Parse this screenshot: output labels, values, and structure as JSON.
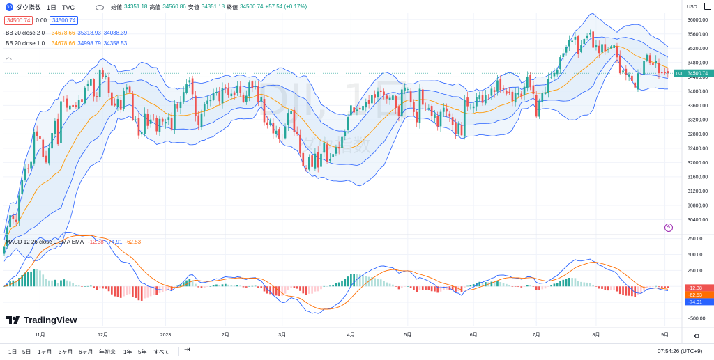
{
  "header": {
    "symbol_badge": "30",
    "title": "ダウ指数 · 1日 · TVC",
    "open_label": "始値",
    "open": "34351.18",
    "high_label": "高値",
    "high": "34560.86",
    "low_label": "安値",
    "low": "34351.18",
    "close_label": "終値",
    "close": "34500.74",
    "change": "+57.54 (+0.17%)",
    "sell_price": "34500.74",
    "spread": "0.00",
    "buy_price": "34500.74",
    "currency": "USD"
  },
  "legends": {
    "bb2_name": "BB 20 close 2 0",
    "bb2_basis": "34678.66",
    "bb2_upper": "35318.93",
    "bb2_lower": "34038.39",
    "bb1_name": "BB 20 close 1 0",
    "bb1_basis": "34678.66",
    "bb1_upper": "34998.79",
    "bb1_lower": "34358.53",
    "macd_name": "MACD 12 26 close 9 EMA EMA",
    "macd_hist": "-12.38",
    "macd_line": "-74.91",
    "macd_signal": "-62.53"
  },
  "watermark": {
    "symbol": "DJI, 1日",
    "name": "ダウ指数"
  },
  "price_axis": {
    "ticks": [
      "36000.00",
      "35600.00",
      "35200.00",
      "34800.00",
      "34400.00",
      "34000.00",
      "33600.00",
      "33200.00",
      "32800.00",
      "32400.00",
      "32000.00",
      "31600.00",
      "31200.00",
      "30800.00",
      "30400.00"
    ],
    "last_tag_name": "DJI",
    "last_tag_value": "34500.74"
  },
  "macd_axis": {
    "ticks": [
      "750.00",
      "500.00",
      "250.00",
      "0.00",
      "−250.00",
      "−500.00"
    ]
  },
  "time_axis": {
    "labels": [
      "11月",
      "12月",
      "2023",
      "2月",
      "3月",
      "4月",
      "5月",
      "6月",
      "7月",
      "8月",
      "9月"
    ]
  },
  "bottom": {
    "timeframes": [
      "1日",
      "5日",
      "1ヶ月",
      "3ヶ月",
      "6ヶ月",
      "年初来",
      "1年",
      "5年",
      "すべて"
    ],
    "clock": "07:54:26 (UTC+9)"
  },
  "logo_text": "TradingView",
  "colors": {
    "up": "#26a69a",
    "down": "#ef5350",
    "bb_line": "#2962ff",
    "bb_fill": "#e3effa",
    "basis": "#ff9800",
    "macd_line": "#2962ff",
    "signal_line": "#ff6d00",
    "hist_pos": "#26a69a",
    "hist_pos_light": "#b2dfdb",
    "hist_neg": "#ef5350",
    "hist_neg_light": "#ffcdd2"
  },
  "chart_data": {
    "type": "candlestick",
    "dates": [
      "2022-10-14",
      "2022-10-17",
      "2022-10-18",
      "2022-10-19",
      "2022-10-20",
      "2022-10-21",
      "2022-10-24",
      "2022-10-25",
      "2022-10-26",
      "2022-10-27",
      "2022-10-28",
      "2022-10-31",
      "2022-11-01",
      "2022-11-02",
      "2022-11-03",
      "2022-11-04",
      "2022-11-07",
      "2022-11-08",
      "2022-11-09",
      "2022-11-10",
      "2022-11-11",
      "2022-11-14",
      "2022-11-15",
      "2022-11-16",
      "2022-11-17",
      "2022-11-18",
      "2022-11-21",
      "2022-11-22",
      "2022-11-23",
      "2022-11-25",
      "2022-11-28",
      "2022-11-29",
      "2022-11-30",
      "2022-12-01",
      "2022-12-02",
      "2022-12-05",
      "2022-12-06",
      "2022-12-07",
      "2022-12-08",
      "2022-12-09",
      "2022-12-12",
      "2022-12-13",
      "2022-12-14",
      "2022-12-15",
      "2022-12-16",
      "2022-12-19",
      "2022-12-20",
      "2022-12-21",
      "2022-12-22",
      "2022-12-23",
      "2022-12-27",
      "2022-12-28",
      "2022-12-29",
      "2022-12-30",
      "2023-01-03",
      "2023-01-04",
      "2023-01-05",
      "2023-01-06",
      "2023-01-09",
      "2023-01-10",
      "2023-01-11",
      "2023-01-12",
      "2023-01-13",
      "2023-01-17",
      "2023-01-18",
      "2023-01-19",
      "2023-01-20",
      "2023-01-23",
      "2023-01-24",
      "2023-01-25",
      "2023-01-26",
      "2023-01-27",
      "2023-01-30",
      "2023-01-31",
      "2023-02-01",
      "2023-02-02",
      "2023-02-03",
      "2023-02-06",
      "2023-02-07",
      "2023-02-08",
      "2023-02-09",
      "2023-02-10",
      "2023-02-13",
      "2023-02-14",
      "2023-02-15",
      "2023-02-16",
      "2023-02-17",
      "2023-02-21",
      "2023-02-22",
      "2023-02-23",
      "2023-02-24",
      "2023-02-27",
      "2023-02-28",
      "2023-03-01",
      "2023-03-02",
      "2023-03-03",
      "2023-03-06",
      "2023-03-07",
      "2023-03-08",
      "2023-03-09",
      "2023-03-10",
      "2023-03-13",
      "2023-03-14",
      "2023-03-15",
      "2023-03-16",
      "2023-03-17",
      "2023-03-20",
      "2023-03-21",
      "2023-03-22",
      "2023-03-23",
      "2023-03-24",
      "2023-03-27",
      "2023-03-28",
      "2023-03-29",
      "2023-03-30",
      "2023-03-31",
      "2023-04-03",
      "2023-04-04",
      "2023-04-05",
      "2023-04-06",
      "2023-04-10",
      "2023-04-11",
      "2023-04-12",
      "2023-04-13",
      "2023-04-14",
      "2023-04-17",
      "2023-04-18",
      "2023-04-19",
      "2023-04-20",
      "2023-04-21",
      "2023-04-24",
      "2023-04-25",
      "2023-04-26",
      "2023-04-27",
      "2023-04-28",
      "2023-05-01",
      "2023-05-02",
      "2023-05-03",
      "2023-05-04",
      "2023-05-05",
      "2023-05-08",
      "2023-05-09",
      "2023-05-10",
      "2023-05-11",
      "2023-05-12",
      "2023-05-15",
      "2023-05-16",
      "2023-05-17",
      "2023-05-18",
      "2023-05-19",
      "2023-05-22",
      "2023-05-23",
      "2023-05-24",
      "2023-05-25",
      "2023-05-26",
      "2023-05-30",
      "2023-05-31",
      "2023-06-01",
      "2023-06-02",
      "2023-06-05",
      "2023-06-06",
      "2023-06-07",
      "2023-06-08",
      "2023-06-09",
      "2023-06-12",
      "2023-06-13",
      "2023-06-14",
      "2023-06-15",
      "2023-06-16",
      "2023-06-20",
      "2023-06-21",
      "2023-06-22",
      "2023-06-23",
      "2023-06-26",
      "2023-06-27",
      "2023-06-28",
      "2023-06-29",
      "2023-06-30",
      "2023-07-03",
      "2023-07-05",
      "2023-07-06",
      "2023-07-07",
      "2023-07-10",
      "2023-07-11",
      "2023-07-12",
      "2023-07-13",
      "2023-07-14",
      "2023-07-17",
      "2023-07-18",
      "2023-07-19",
      "2023-07-20",
      "2023-07-21",
      "2023-07-24",
      "2023-07-25",
      "2023-07-26",
      "2023-07-27",
      "2023-07-28",
      "2023-07-31",
      "2023-08-01",
      "2023-08-02",
      "2023-08-03",
      "2023-08-04",
      "2023-08-07",
      "2023-08-08",
      "2023-08-09",
      "2023-08-10",
      "2023-08-11",
      "2023-08-14",
      "2023-08-15",
      "2023-08-16",
      "2023-08-17",
      "2023-08-18",
      "2023-08-21",
      "2023-08-22",
      "2023-08-23",
      "2023-08-24",
      "2023-08-25",
      "2023-08-28",
      "2023-08-29",
      "2023-08-30",
      "2023-08-31",
      "2023-09-01",
      "2023-09-05"
    ],
    "closes": [
      29634,
      30186,
      30524,
      30424,
      30334,
      31082,
      31500,
      31837,
      31839,
      32034,
      32861,
      32733,
      32653,
      32148,
      32001,
      32404,
      32827,
      33161,
      32513,
      33715,
      33748,
      33537,
      33593,
      33554,
      33547,
      33746,
      33700,
      34098,
      34195,
      34347,
      33850,
      33853,
      34590,
      34395,
      34430,
      33948,
      33597,
      33597,
      33781,
      33477,
      34006,
      34108,
      33966,
      33203,
      33203,
      32757,
      32850,
      33377,
      33027,
      33204,
      33241,
      32876,
      33221,
      33147,
      33137,
      33270,
      32930,
      33631,
      33518,
      33705,
      33974,
      34190,
      34303,
      33911,
      33297,
      33045,
      33376,
      33630,
      33733,
      33744,
      33950,
      33978,
      33718,
      34086,
      34093,
      33890,
      33927,
      33891,
      34156,
      33950,
      33700,
      33870,
      34246,
      34089,
      34128,
      33697,
      33826,
      33130,
      33046,
      33154,
      32817,
      32890,
      32657,
      32662,
      33004,
      33390,
      33432,
      32856,
      32798,
      32254,
      31910,
      31820,
      32155,
      31875,
      32247,
      31862,
      32245,
      32561,
      32031,
      32106,
      32238,
      32432,
      32394,
      32717,
      32860,
      33274,
      33601,
      33403,
      33483,
      33486,
      33587,
      33685,
      33647,
      33886,
      33809,
      33988,
      33977,
      33897,
      33787,
      33809,
      33876,
      33531,
      33302,
      34045,
      34099,
      34051,
      33684,
      33415,
      33128,
      34066,
      33619,
      33562,
      33531,
      33300,
      33348,
      33012,
      33420,
      33535,
      33426,
      33287,
      33055,
      32800,
      33093,
      32764,
      33762,
      33576,
      33562,
      33573,
      33833,
      33877,
      33674,
      33879,
      33836,
      34066,
      33979,
      34299,
      34027,
      34053,
      33926,
      33951,
      33727,
      33946,
      33938,
      33853,
      34122,
      34407,
      34109,
      33922,
      33288,
      33734,
      33944,
      33968,
      34347,
      34395,
      34509,
      34585,
      34951,
      35061,
      35226,
      35438,
      35411,
      35520,
      35050,
      35282,
      35460,
      35559,
      35630,
      35215,
      35282,
      35065,
      35314,
      35123,
      35176,
      35254,
      35281,
      34946,
      34500,
      34575,
      34463,
      34474,
      34288,
      34100,
      34500,
      34463,
      34853,
      35016,
      34787,
      34722,
      34837,
      34500,
      34500,
      34500,
      34500
    ]
  }
}
